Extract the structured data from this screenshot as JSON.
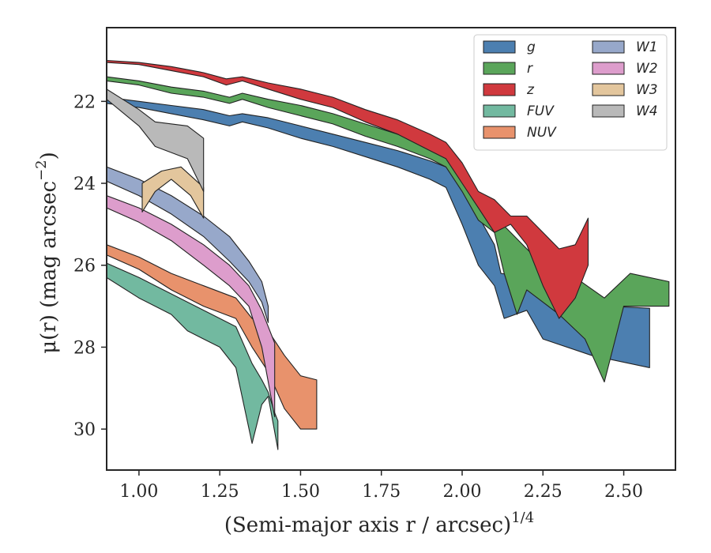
{
  "chart_data": {
    "type": "area",
    "xlabel": "(Semi-major axis r / arcsec)",
    "xlabel_exponent": "1/4",
    "ylabel": "μ(r) (mag arcsec",
    "ylabel_exponent": "−2",
    "ylabel_suffix": ")",
    "xlim": [
      0.9,
      2.66
    ],
    "ylim": [
      31.0,
      20.2
    ],
    "y_inverted": true,
    "x_ticks": [
      1.0,
      1.25,
      1.5,
      1.75,
      2.0,
      2.25,
      2.5
    ],
    "x_tick_labels": [
      "1.00",
      "1.25",
      "1.50",
      "1.75",
      "2.00",
      "2.25",
      "2.50"
    ],
    "y_ticks": [
      22,
      24,
      26,
      28,
      30
    ],
    "y_tick_labels": [
      "22",
      "24",
      "26",
      "28",
      "30"
    ],
    "grid": false,
    "legend_position": "top-right",
    "legend_columns": 2,
    "series": [
      {
        "name": "g",
        "color": "#4c7fb0",
        "upper": [
          [
            0.9,
            21.9
          ],
          [
            1.0,
            22.0
          ],
          [
            1.1,
            22.1
          ],
          [
            1.2,
            22.2
          ],
          [
            1.28,
            22.35
          ],
          [
            1.32,
            22.3
          ],
          [
            1.4,
            22.4
          ],
          [
            1.5,
            22.6
          ],
          [
            1.6,
            22.8
          ],
          [
            1.7,
            23.0
          ],
          [
            1.8,
            23.2
          ],
          [
            1.9,
            23.45
          ],
          [
            1.95,
            23.6
          ],
          [
            2.0,
            24.1
          ],
          [
            2.05,
            24.8
          ],
          [
            2.1,
            25.5
          ],
          [
            2.12,
            26.2
          ],
          [
            2.2,
            26.3
          ],
          [
            2.3,
            26.7
          ],
          [
            2.45,
            27.0
          ],
          [
            2.58,
            27.05
          ]
        ],
        "lower": [
          [
            0.9,
            22.05
          ],
          [
            1.0,
            22.15
          ],
          [
            1.1,
            22.3
          ],
          [
            1.2,
            22.45
          ],
          [
            1.28,
            22.6
          ],
          [
            1.32,
            22.5
          ],
          [
            1.4,
            22.65
          ],
          [
            1.5,
            22.9
          ],
          [
            1.6,
            23.1
          ],
          [
            1.7,
            23.35
          ],
          [
            1.8,
            23.6
          ],
          [
            1.9,
            23.9
          ],
          [
            1.95,
            24.1
          ],
          [
            2.0,
            25.0
          ],
          [
            2.05,
            26.0
          ],
          [
            2.1,
            26.5
          ],
          [
            2.13,
            27.3
          ],
          [
            2.2,
            27.1
          ],
          [
            2.25,
            27.8
          ],
          [
            2.4,
            28.2
          ],
          [
            2.58,
            28.5
          ]
        ]
      },
      {
        "name": "r",
        "color": "#5aa55a",
        "upper": [
          [
            0.9,
            21.4
          ],
          [
            1.0,
            21.5
          ],
          [
            1.1,
            21.65
          ],
          [
            1.2,
            21.75
          ],
          [
            1.28,
            21.9
          ],
          [
            1.32,
            21.8
          ],
          [
            1.4,
            21.95
          ],
          [
            1.5,
            22.1
          ],
          [
            1.6,
            22.3
          ],
          [
            1.7,
            22.55
          ],
          [
            1.8,
            22.8
          ],
          [
            1.9,
            23.1
          ],
          [
            1.95,
            23.3
          ],
          [
            2.0,
            23.8
          ],
          [
            2.05,
            24.5
          ],
          [
            2.1,
            24.8
          ],
          [
            2.15,
            25.2
          ],
          [
            2.25,
            26.0
          ],
          [
            2.35,
            26.3
          ],
          [
            2.44,
            26.8
          ],
          [
            2.52,
            26.2
          ],
          [
            2.64,
            26.4
          ]
        ],
        "lower": [
          [
            0.9,
            21.5
          ],
          [
            1.0,
            21.6
          ],
          [
            1.1,
            21.8
          ],
          [
            1.2,
            21.9
          ],
          [
            1.28,
            22.05
          ],
          [
            1.32,
            21.95
          ],
          [
            1.4,
            22.15
          ],
          [
            1.5,
            22.35
          ],
          [
            1.6,
            22.55
          ],
          [
            1.7,
            22.85
          ],
          [
            1.8,
            23.1
          ],
          [
            1.9,
            23.4
          ],
          [
            1.95,
            23.6
          ],
          [
            2.0,
            24.2
          ],
          [
            2.05,
            24.9
          ],
          [
            2.1,
            25.2
          ],
          [
            2.13,
            26.2
          ],
          [
            2.17,
            27.2
          ],
          [
            2.2,
            26.6
          ],
          [
            2.3,
            27.2
          ],
          [
            2.38,
            27.8
          ],
          [
            2.44,
            28.85
          ],
          [
            2.5,
            27.0
          ],
          [
            2.64,
            27.0
          ]
        ]
      },
      {
        "name": "z",
        "color": "#d0393e",
        "upper": [
          [
            0.9,
            21.0
          ],
          [
            1.0,
            21.05
          ],
          [
            1.1,
            21.15
          ],
          [
            1.2,
            21.3
          ],
          [
            1.27,
            21.45
          ],
          [
            1.32,
            21.4
          ],
          [
            1.4,
            21.55
          ],
          [
            1.5,
            21.7
          ],
          [
            1.6,
            21.9
          ],
          [
            1.7,
            22.2
          ],
          [
            1.8,
            22.45
          ],
          [
            1.9,
            22.8
          ],
          [
            1.95,
            23.0
          ],
          [
            2.0,
            23.5
          ],
          [
            2.05,
            24.2
          ],
          [
            2.1,
            24.4
          ],
          [
            2.15,
            24.8
          ],
          [
            2.2,
            24.8
          ],
          [
            2.25,
            25.2
          ],
          [
            2.3,
            25.6
          ],
          [
            2.35,
            25.5
          ],
          [
            2.39,
            24.85
          ]
        ],
        "lower": [
          [
            0.9,
            21.05
          ],
          [
            1.0,
            21.1
          ],
          [
            1.1,
            21.25
          ],
          [
            1.2,
            21.4
          ],
          [
            1.27,
            21.6
          ],
          [
            1.32,
            21.5
          ],
          [
            1.4,
            21.7
          ],
          [
            1.5,
            21.95
          ],
          [
            1.6,
            22.15
          ],
          [
            1.7,
            22.5
          ],
          [
            1.8,
            22.8
          ],
          [
            1.9,
            23.2
          ],
          [
            1.95,
            23.4
          ],
          [
            2.0,
            24.0
          ],
          [
            2.05,
            24.6
          ],
          [
            2.1,
            25.2
          ],
          [
            2.15,
            25.0
          ],
          [
            2.2,
            25.5
          ],
          [
            2.25,
            26.5
          ],
          [
            2.3,
            27.3
          ],
          [
            2.35,
            26.8
          ],
          [
            2.39,
            26.0
          ]
        ]
      },
      {
        "name": "FUV",
        "color": "#72b9a0",
        "upper": [
          [
            0.9,
            25.95
          ],
          [
            1.0,
            26.3
          ],
          [
            1.1,
            26.7
          ],
          [
            1.2,
            27.1
          ],
          [
            1.25,
            27.3
          ],
          [
            1.3,
            27.5
          ],
          [
            1.35,
            28.4
          ],
          [
            1.38,
            28.8
          ],
          [
            1.4,
            29.1
          ],
          [
            1.42,
            29.6
          ],
          [
            1.43,
            29.8
          ]
        ],
        "lower": [
          [
            0.9,
            26.3
          ],
          [
            1.0,
            26.8
          ],
          [
            1.1,
            27.2
          ],
          [
            1.15,
            27.6
          ],
          [
            1.2,
            27.8
          ],
          [
            1.25,
            28.0
          ],
          [
            1.3,
            28.5
          ],
          [
            1.35,
            30.35
          ],
          [
            1.38,
            29.4
          ],
          [
            1.4,
            29.2
          ],
          [
            1.43,
            30.5
          ]
        ]
      },
      {
        "name": "NUV",
        "color": "#e8926c",
        "upper": [
          [
            0.9,
            25.5
          ],
          [
            1.0,
            25.8
          ],
          [
            1.1,
            26.2
          ],
          [
            1.2,
            26.5
          ],
          [
            1.3,
            26.8
          ],
          [
            1.35,
            27.3
          ],
          [
            1.4,
            27.6
          ],
          [
            1.45,
            28.2
          ],
          [
            1.5,
            28.7
          ],
          [
            1.55,
            28.8
          ]
        ],
        "lower": [
          [
            0.9,
            25.75
          ],
          [
            1.0,
            26.1
          ],
          [
            1.1,
            26.6
          ],
          [
            1.2,
            27.0
          ],
          [
            1.3,
            27.3
          ],
          [
            1.35,
            28.0
          ],
          [
            1.4,
            28.6
          ],
          [
            1.45,
            29.5
          ],
          [
            1.5,
            30.0
          ],
          [
            1.55,
            30.0
          ]
        ]
      },
      {
        "name": "W1",
        "color": "#97a8ca",
        "upper": [
          [
            0.9,
            23.6
          ],
          [
            1.0,
            23.9
          ],
          [
            1.1,
            24.3
          ],
          [
            1.2,
            24.8
          ],
          [
            1.28,
            25.3
          ],
          [
            1.34,
            25.9
          ],
          [
            1.38,
            26.4
          ],
          [
            1.4,
            27.0
          ]
        ],
        "lower": [
          [
            0.9,
            23.95
          ],
          [
            1.0,
            24.3
          ],
          [
            1.1,
            24.75
          ],
          [
            1.2,
            25.3
          ],
          [
            1.28,
            25.9
          ],
          [
            1.34,
            26.4
          ],
          [
            1.38,
            26.9
          ],
          [
            1.4,
            27.4
          ]
        ]
      },
      {
        "name": "W2",
        "color": "#dd9dcc",
        "upper": [
          [
            0.9,
            24.3
          ],
          [
            1.0,
            24.6
          ],
          [
            1.1,
            25.0
          ],
          [
            1.2,
            25.5
          ],
          [
            1.28,
            26.0
          ],
          [
            1.34,
            26.5
          ],
          [
            1.38,
            27.1
          ],
          [
            1.42,
            27.9
          ]
        ],
        "lower": [
          [
            0.9,
            24.6
          ],
          [
            1.0,
            24.95
          ],
          [
            1.1,
            25.4
          ],
          [
            1.2,
            26.0
          ],
          [
            1.28,
            26.5
          ],
          [
            1.34,
            27.0
          ],
          [
            1.38,
            28.0
          ],
          [
            1.42,
            29.7
          ]
        ]
      },
      {
        "name": "W3",
        "color": "#e3c69d",
        "upper": [
          [
            1.01,
            24.0
          ],
          [
            1.07,
            23.7
          ],
          [
            1.13,
            23.6
          ],
          [
            1.2,
            24.1
          ],
          [
            1.2,
            24.2
          ]
        ],
        "lower": [
          [
            1.01,
            24.7
          ],
          [
            1.05,
            24.2
          ],
          [
            1.1,
            23.9
          ],
          [
            1.16,
            24.3
          ],
          [
            1.2,
            24.85
          ]
        ]
      },
      {
        "name": "W4",
        "color": "#b9b9b9",
        "upper": [
          [
            0.9,
            21.7
          ],
          [
            1.0,
            22.2
          ],
          [
            1.05,
            22.5
          ],
          [
            1.15,
            22.6
          ],
          [
            1.2,
            22.9
          ],
          [
            1.2,
            23.3
          ]
        ],
        "lower": [
          [
            0.9,
            21.95
          ],
          [
            1.0,
            22.6
          ],
          [
            1.05,
            23.1
          ],
          [
            1.15,
            23.4
          ],
          [
            1.2,
            24.2
          ]
        ]
      }
    ]
  }
}
